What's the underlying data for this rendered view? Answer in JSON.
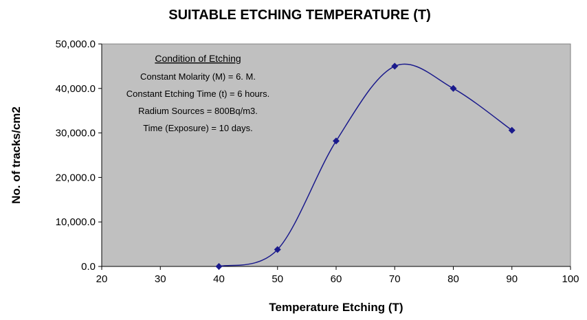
{
  "chart_data": {
    "type": "scatter",
    "title": "SUITABLE ETCHING TEMPERATURE (T)",
    "xlabel": "Temperature Etching (T)",
    "ylabel": "No. of tracks/cm2",
    "xlim": [
      20,
      100
    ],
    "ylim": [
      0,
      50000
    ],
    "x_ticks": [
      20,
      30,
      40,
      50,
      60,
      70,
      80,
      90,
      100
    ],
    "x_tick_labels": [
      "20",
      "30",
      "40",
      "50",
      "60",
      "70",
      "80",
      "90",
      "100"
    ],
    "y_ticks": [
      0,
      10000,
      20000,
      30000,
      40000,
      50000
    ],
    "y_tick_labels": [
      "0.0",
      "10,000.0",
      "20,000.0",
      "30,000.0",
      "40,000.0",
      "50,000.0"
    ],
    "grid": false,
    "smooth_line": true,
    "marker": "diamond",
    "series": [
      {
        "x": [
          40,
          50,
          60,
          70,
          80,
          90
        ],
        "y": [
          0,
          3800,
          28200,
          45000,
          40000,
          30600
        ],
        "color": "#1a1a8c"
      }
    ],
    "annotation": {
      "heading": "Condition of Etching",
      "lines": [
        "Constant Molarity (M) = 6. M.",
        "Constant Etching Time (t) = 6 hours.",
        "Radium Sources = 800Bq/m3.",
        "Time (Exposure) = 10 days."
      ]
    },
    "plot_background": "#c0c0c0",
    "marker_color": "#1a1a8c"
  }
}
